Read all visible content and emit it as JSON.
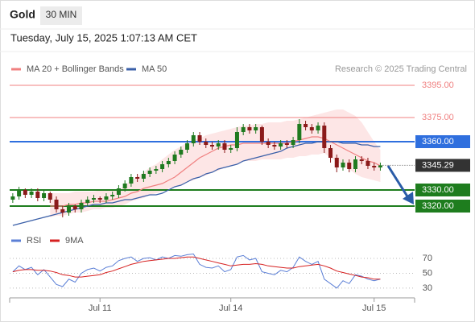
{
  "header": {
    "symbol": "Gold",
    "interval": "30 MIN",
    "timestamp": "Tuesday, July 15, 2025 1:07:13 AM CET"
  },
  "chart_data": [
    {
      "type": "candlestick",
      "credit": "Research © 2025 Trading Central",
      "up_color": "#1f7a1f",
      "down_color": "#8b1a1a",
      "ylim": [
        3305,
        3400
      ],
      "open": [
        3324,
        3326,
        3330,
        3327,
        3329,
        3325,
        3328,
        3324,
        3318,
        3316,
        3320,
        3318,
        3322,
        3324,
        3325,
        3324,
        3326,
        3327,
        3331,
        3334,
        3338,
        3337,
        3340,
        3342,
        3343,
        3346,
        3348,
        3352,
        3355,
        3359,
        3364,
        3360,
        3358,
        3357,
        3359,
        3355,
        3356,
        3366,
        3369,
        3367,
        3369,
        3360,
        3358,
        3357,
        3359,
        3358,
        3361,
        3371,
        3369,
        3367,
        3370,
        3356,
        3350,
        3344,
        3347,
        3343,
        3349,
        3348,
        3345,
        3344
      ],
      "high": [
        3328,
        3332,
        3331,
        3331,
        3331,
        3330,
        3329,
        3326,
        3320,
        3322,
        3321,
        3324,
        3326,
        3327,
        3326,
        3328,
        3329,
        3333,
        3336,
        3340,
        3340,
        3342,
        3344,
        3345,
        3348,
        3350,
        3354,
        3357,
        3361,
        3366,
        3366,
        3362,
        3360,
        3361,
        3361,
        3358,
        3369,
        3371,
        3371,
        3371,
        3370,
        3362,
        3360,
        3361,
        3361,
        3363,
        3374,
        3373,
        3371,
        3372,
        3372,
        3358,
        3352,
        3349,
        3349,
        3351,
        3351,
        3350,
        3347,
        3347
      ],
      "low": [
        3322,
        3324,
        3325,
        3325,
        3323,
        3323,
        3322,
        3316,
        3313,
        3314,
        3316,
        3316,
        3320,
        3322,
        3322,
        3322,
        3324,
        3325,
        3329,
        3332,
        3335,
        3335,
        3338,
        3340,
        3341,
        3344,
        3346,
        3350,
        3353,
        3357,
        3358,
        3356,
        3355,
        3355,
        3353,
        3353,
        3354,
        3364,
        3365,
        3365,
        3358,
        3356,
        3355,
        3355,
        3356,
        3356,
        3359,
        3367,
        3365,
        3365,
        3353,
        3347,
        3341,
        3342,
        3341,
        3341,
        3346,
        3343,
        3342,
        3342
      ],
      "close": [
        3326,
        3330,
        3327,
        3329,
        3325,
        3328,
        3324,
        3318,
        3316,
        3320,
        3318,
        3322,
        3324,
        3325,
        3324,
        3326,
        3327,
        3331,
        3334,
        3338,
        3337,
        3340,
        3342,
        3343,
        3346,
        3348,
        3352,
        3355,
        3359,
        3364,
        3360,
        3358,
        3357,
        3359,
        3355,
        3356,
        3366,
        3369,
        3367,
        3369,
        3360,
        3358,
        3357,
        3359,
        3358,
        3361,
        3371,
        3369,
        3367,
        3370,
        3356,
        3350,
        3344,
        3347,
        3343,
        3349,
        3348,
        3345,
        3344,
        3345.29
      ],
      "last_label": "3345.29",
      "series": [
        {
          "name": "MA 20 + Bollinger Bands",
          "color": "#f08080",
          "band_color": "#fde0e0",
          "values": [
            null,
            null,
            null,
            null,
            null,
            null,
            3320,
            3320,
            3320,
            3321,
            3321,
            3322,
            3322,
            3323,
            3323,
            3323,
            3324,
            3325,
            3326,
            3328,
            3329,
            3331,
            3332,
            3333,
            3334,
            3336,
            3338,
            3341,
            3344,
            3347,
            3350,
            3352,
            3354,
            3356,
            3357,
            3358,
            3358,
            3359,
            3359,
            3359,
            3359,
            3359,
            3359,
            3359,
            3359,
            3360,
            3361,
            3362,
            3363,
            3363,
            3362,
            3360,
            3358,
            3356,
            3354,
            3352,
            3350,
            3348,
            3347,
            3345
          ],
          "upper": [
            null,
            null,
            null,
            null,
            null,
            null,
            3328,
            3328,
            3328,
            3328,
            3329,
            3329,
            3329,
            3329,
            3330,
            3330,
            3330,
            3330,
            3333,
            3336,
            3338,
            3341,
            3344,
            3346,
            3349,
            3352,
            3355,
            3357,
            3360,
            3361,
            3362,
            3364,
            3365,
            3366,
            3367,
            3368,
            3369,
            3370,
            3370,
            3371,
            3371,
            3372,
            3372,
            3372,
            3373,
            3373,
            3374,
            3375,
            3376,
            3377,
            3378,
            3379,
            3380,
            3380,
            3378,
            3376,
            3372,
            3366,
            3360,
            3355
          ],
          "lower": [
            null,
            null,
            null,
            null,
            null,
            null,
            3313,
            3314,
            3314,
            3315,
            3316,
            3316,
            3317,
            3318,
            3318,
            3319,
            3319,
            3320,
            3321,
            3323,
            3324,
            3325,
            3327,
            3328,
            3329,
            3331,
            3332,
            3333,
            3335,
            3336,
            3338,
            3339,
            3341,
            3342,
            3344,
            3345,
            3346,
            3348,
            3348,
            3348,
            3349,
            3349,
            3349,
            3349,
            3350,
            3350,
            3351,
            3351,
            3352,
            3352,
            3353,
            3350,
            3348,
            3345,
            3343,
            3340,
            3338,
            3337,
            3336,
            3335
          ]
        },
        {
          "name": "MA 50",
          "color": "#3a5fa8",
          "values": [
            3308,
            3309,
            3310,
            3311,
            3312,
            3313,
            3314,
            3315,
            3316,
            3317,
            3318,
            3319,
            3320,
            3321,
            3321,
            3322,
            3322,
            3323,
            3324,
            3324,
            3325,
            3326,
            3327,
            3327,
            3328,
            3330,
            3332,
            3333,
            3335,
            3337,
            3338,
            3340,
            3341,
            3343,
            3344,
            3345,
            3346,
            3348,
            3349,
            3350,
            3351,
            3352,
            3353,
            3354,
            3356,
            3357,
            3358,
            3359,
            3359,
            3360,
            3360,
            3360,
            3360,
            3359,
            3359,
            3359,
            3358,
            3358,
            3357,
            3357
          ]
        }
      ],
      "levels": [
        {
          "value": 3395,
          "label": "3395.00",
          "color": "#f08080",
          "filled": false
        },
        {
          "value": 3375,
          "label": "3375.00",
          "color": "#f08080",
          "filled": false
        },
        {
          "value": 3360,
          "label": "3360.00",
          "color": "#2f6fde",
          "filled": true
        },
        {
          "value": 3330,
          "label": "3330.00",
          "color": "#1e7d1e",
          "filled": true
        },
        {
          "value": 3320,
          "label": "3320.00",
          "color": "#1e7d1e",
          "filled": true
        }
      ]
    },
    {
      "type": "line",
      "categories": [
        null,
        null,
        null,
        null,
        null,
        null,
        null,
        null,
        null,
        null,
        null,
        null,
        null,
        null,
        "Jul 11",
        null,
        null,
        null,
        null,
        null,
        null,
        null,
        null,
        null,
        null,
        null,
        null,
        null,
        null,
        null,
        null,
        null,
        null,
        null,
        null,
        "Jul 14",
        null,
        null,
        null,
        null,
        null,
        null,
        null,
        null,
        null,
        null,
        null,
        null,
        null,
        null,
        null,
        null,
        null,
        null,
        null,
        null,
        null,
        null,
        "Jul 15",
        null
      ],
      "ylim": [
        19,
        82
      ],
      "yticks": [
        70,
        50,
        30
      ],
      "series": [
        {
          "name": "RSI",
          "color": "#5b7fd6",
          "values": [
            52,
            60,
            55,
            58,
            48,
            55,
            45,
            35,
            32,
            42,
            38,
            50,
            55,
            57,
            53,
            58,
            60,
            67,
            70,
            72,
            66,
            70,
            71,
            68,
            72,
            70,
            74,
            73,
            75,
            76,
            62,
            58,
            57,
            60,
            52,
            55,
            72,
            74,
            68,
            70,
            52,
            50,
            48,
            54,
            52,
            58,
            72,
            66,
            62,
            66,
            42,
            36,
            30,
            40,
            36,
            48,
            46,
            42,
            40,
            42
          ]
        },
        {
          "name": "9MA",
          "color": "#d62020",
          "values": [
            52,
            54,
            55,
            55,
            54,
            54,
            53,
            51,
            48,
            47,
            45,
            45,
            46,
            47,
            48,
            51,
            53,
            56,
            59,
            62,
            64,
            66,
            67,
            68,
            69,
            70,
            70,
            71,
            72,
            72,
            70,
            68,
            66,
            64,
            62,
            60,
            61,
            62,
            62,
            63,
            62,
            60,
            59,
            58,
            57,
            57,
            59,
            60,
            61,
            62,
            60,
            57,
            53,
            51,
            49,
            47,
            45,
            44,
            42,
            42
          ]
        }
      ]
    }
  ]
}
